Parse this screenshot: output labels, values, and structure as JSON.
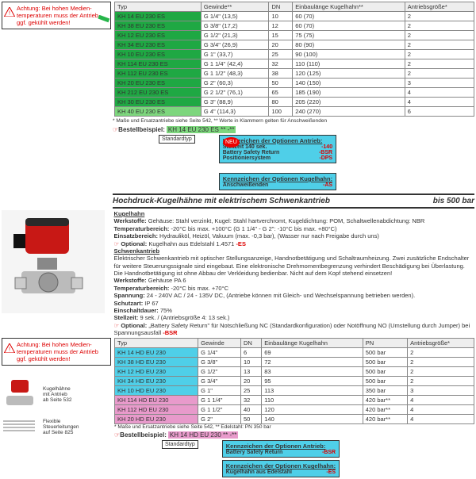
{
  "warning": "Achtung: Bei hohen Medien­temperaturen muss der An­trieb ggf. gekühlt werden!",
  "table1": {
    "headers": [
      "Typ",
      "Gewinde**",
      "DN",
      "Einbaulänge Kugelhahn**",
      "Antriebsgröße*"
    ],
    "rows": [
      [
        "KH 14 EU 230 ES",
        "G 1/4\" (13,5)",
        "10",
        "60 (70)",
        "2"
      ],
      [
        "KH 38 EU 230 ES",
        "G 3/8\" (17,2)",
        "12",
        "60 (70)",
        "2"
      ],
      [
        "KH 12 EU 230 ES",
        "G 1/2\" (21,3)",
        "15",
        "75 (75)",
        "2"
      ],
      [
        "KH 34 EU 230 ES",
        "G 3/4\" (26,9)",
        "20",
        "80 (90)",
        "2"
      ],
      [
        "KH 10 EU 230 ES",
        "G 1\" (33,7)",
        "25",
        "90 (100)",
        "2"
      ],
      [
        "KH 114 EU 230 ES",
        "G 1 1/4\" (42,4)",
        "32",
        "110 (110)",
        "2"
      ],
      [
        "KH 112 EU 230 ES",
        "G 1 1/2\" (48,3)",
        "38",
        "120 (125)",
        "2"
      ],
      [
        "KH 20 EU 230 ES",
        "G 2\" (60,3)",
        "50",
        "140 (150)",
        "3"
      ],
      [
        "KH 212 EU 230 ES",
        "G 2 1/2\" (76,1)",
        "65",
        "185 (190)",
        "4"
      ],
      [
        "KH 30 EU 230 ES",
        "G 3\" (88,9)",
        "80",
        "205 (220)",
        "4"
      ],
      [
        "KH 40 EU 230 ES",
        "G 4\" (114,3)",
        "100",
        "240 (270)",
        "6"
      ]
    ],
    "rowBg": [
      "bg-g",
      "bg-g",
      "bg-g",
      "bg-g",
      "bg-g",
      "bg-g",
      "bg-g",
      "bg-g",
      "bg-g",
      "bg-g",
      "bg-lg"
    ]
  },
  "foot1": "* Maße und Ersatzantriebe siehe Seite 542, ** Werte in Klammern gelten für Anschweißenden",
  "bestell1_lbl": "Bestellbeispiel:",
  "bestell1_val": "KH 14 EU 230 ES ** -**",
  "std": "Standardtyp",
  "optA": {
    "title": "Kennzeichen der Optionen Antrieb:",
    "lines": [
      [
        "Stellzeit 140 sek.",
        "-140"
      ],
      [
        "Battery Safety Return",
        "-BSR"
      ],
      [
        "Positioniersystem",
        "-DPS"
      ]
    ]
  },
  "optK": {
    "title": "Kennzeichen der Optionen Kugelhahn:",
    "lines": [
      [
        "Anschweißenden",
        "-AS"
      ]
    ]
  },
  "neu": "NEU",
  "sec_title": "Hochdruck-Kugelhähne mit elektrischem Schwenkantrieb",
  "sec_right": "bis 500 bar",
  "specs": {
    "h_kugel": "Kugelhahn",
    "werkstoffe": "Werkstoffe:",
    "werkstoffe_v": " Gehäuse: Stahl verzinkt, Kugel: Stahl hartverchromt, Kugeldichtung: POM, Schaltwellenabdichtung: NBR",
    "temp": "Temperaturbereich:",
    "temp_v": " -20°C bis max. +100°C (G 1 1/4\" - G 2\": -10°C bis max. +80°C)",
    "einsatz": "Einsatzbereich:",
    "einsatz_v": " Hydrauliköl, Heizöl, Vakuum (max. -0,3 bar), (Wasser nur nach Freigabe durch uns)",
    "opt1a": "Optional:",
    "opt1b": " Kugelhahn aus Edelstahl 1.4571 ",
    "opt1c": "-ES",
    "h_schwenk": "Schwenkantrieb",
    "para": "Elektrischer Schwenkantrieb mit optischer Stellungsanzeige, Handnotbetätigung und Schaltraumheizung. Zwei zusätzliche Endschalter für weitere Steuerungssignale sind eingebaut. Eine elektronische Drehmomentbegrenzung verhindert Beschädigung bei Überlastung. Die Handnotbetätigung ist ohne Abbau der Verkleidung bedienbar. Nicht auf dem Kopf stehend einsetzen!",
    "w2": "Werkstoffe:",
    "w2v": " Gehäuse PA 6",
    "t2": "Temperaturbereich:",
    "t2v": " -20°C bis max. +70°C",
    "sp": "Spannung:",
    "spv": " 24 - 240V AC / 24 - 135V DC, (Antriebe können mit Gleich- und Wechselspannung betrieben werden).",
    "sch": "Schutzart:",
    "schv": " IP 67",
    "ein": "Einschaltdauer:",
    "einv": " 75%",
    "st": "Stellzeit:",
    "stv": " 9 sek. / (Antriebsgröße 4: 13 sek.)",
    "opt2a": "Optional:",
    "opt2b": " „Battery Safety Return\" für Notschließung NC (Standardkonfiguration) oder Notöffnung NO (Umstellung durch Jumper) bei Spannungsausfall ",
    "opt2c": "-BSR"
  },
  "table2": {
    "headers": [
      "Typ",
      "Gewinde",
      "DN",
      "Einbaulänge Kugelhahn",
      "PN",
      "Antriebsgröße*"
    ],
    "rows": [
      [
        "KH 14 HD EU 230",
        "G 1/4\"",
        "6",
        "69",
        "500 bar",
        "2"
      ],
      [
        "KH 38 HD EU 230",
        "G 3/8\"",
        "10",
        "72",
        "500 bar",
        "2"
      ],
      [
        "KH 12 HD EU 230",
        "G 1/2\"",
        "13",
        "83",
        "500 bar",
        "2"
      ],
      [
        "KH 34 HD EU 230",
        "G 3/4\"",
        "20",
        "95",
        "500 bar",
        "2"
      ],
      [
        "KH 10 HD EU 230",
        "G 1\"",
        "25",
        "113",
        "350 bar",
        "3"
      ],
      [
        "KH 114 HD EU 230",
        "G 1 1/4\"",
        "32",
        "110",
        "420 bar**",
        "4"
      ],
      [
        "KH 112 HD EU 230",
        "G 1 1/2\"",
        "40",
        "120",
        "420 bar**",
        "4"
      ],
      [
        "KH 20 HD EU 230",
        "G 2\"",
        "50",
        "140",
        "420 bar**",
        "4"
      ]
    ],
    "rowBg": [
      "bg-c",
      "bg-c",
      "bg-c",
      "bg-c",
      "bg-c",
      "bg-p",
      "bg-p",
      "bg-p"
    ]
  },
  "foot2": "* Maße und Ersatzantriebe siehe Seite 542, ** Edelstahl: PN 350 bar",
  "bestell2_lbl": "Bestellbeispiel:",
  "bestell2_val": "KH 14 HD EU 230 ** -**",
  "optA2": {
    "title": "Kennzeichen der Optionen Antrieb:",
    "lines": [
      [
        "Battery Safety Return",
        "-BSR"
      ]
    ]
  },
  "optK2": {
    "title": "Kennzeichen der Optionen Kugelhahn:",
    "lines": [
      [
        "Kugelhahn aus Edelstahl",
        "-ES"
      ]
    ]
  },
  "sidebox1": {
    "a": "Kugelhähne",
    "b": "mit Antrieb",
    "c": "ab Seite 532"
  },
  "sidebox2": {
    "a": "Flexible",
    "b": "Steuerleitungen",
    "c": "auf Seite 825"
  }
}
